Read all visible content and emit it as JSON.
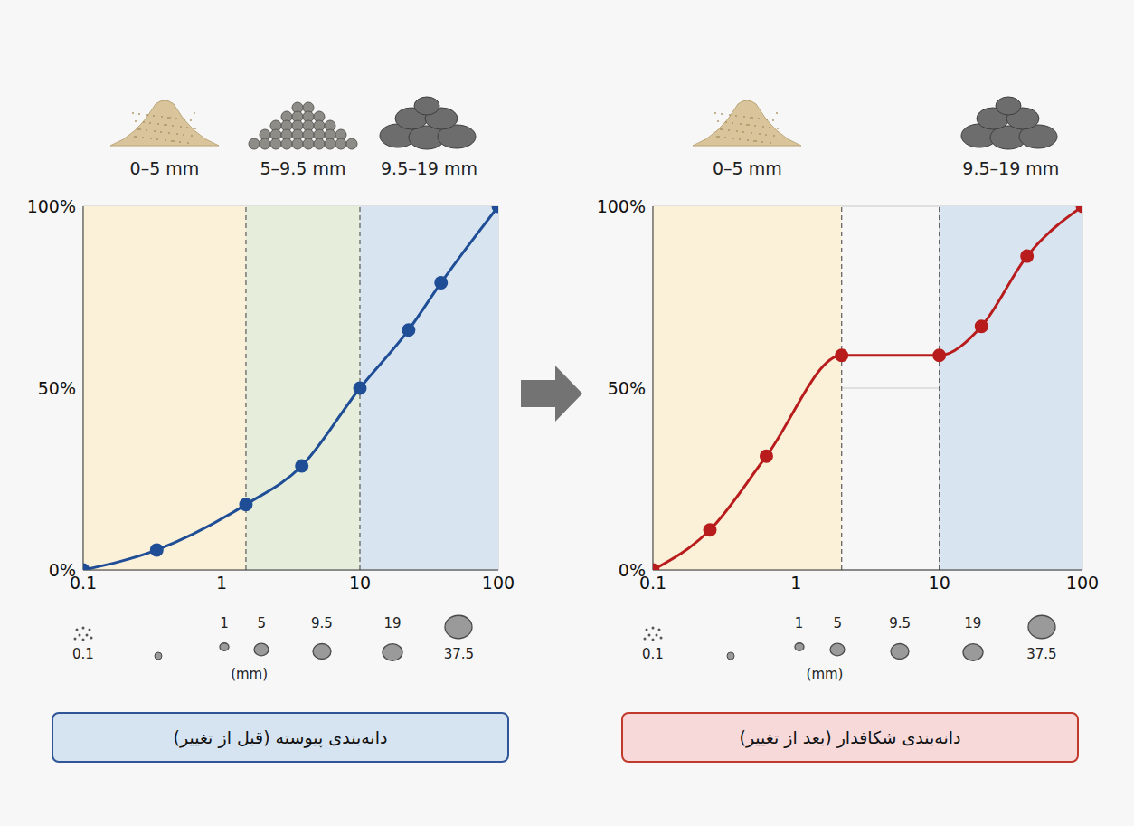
{
  "chart_data": [
    {
      "type": "line",
      "title": "دانه‌بندی پیوسته (قبل از تغییر)",
      "x": [
        0.1,
        0.34,
        1.5,
        3.8,
        10,
        22.5,
        38.6,
        100
      ],
      "values": [
        0,
        5.5,
        18,
        28.6,
        50,
        66,
        79,
        100
      ],
      "color": "#1f4e96",
      "marker": "circle",
      "log": "x",
      "grid": true,
      "xlim": [
        0.1,
        100
      ],
      "xticks": [
        0.1,
        1,
        10,
        100
      ],
      "ylim": [
        0,
        100
      ],
      "yticks": [
        {
          "value": 0,
          "label": "0%"
        },
        {
          "value": 50,
          "label": "50%"
        },
        {
          "value": 100,
          "label": "100%"
        }
      ],
      "x_label": "(mm)",
      "size_labels": [
        "0.1",
        "1",
        "5",
        "9.5",
        "19",
        "37.5"
      ],
      "bands": [
        {
          "label": "0–5 mm",
          "range": [
            0.1,
            1.5
          ],
          "color": "#fbf0d8"
        },
        {
          "label": "5–9.5 mm",
          "range": [
            1.5,
            10
          ],
          "color": "#e6eedb"
        },
        {
          "label": "9.5–19 mm",
          "range": [
            10,
            100
          ],
          "color": "#d8e4f0"
        }
      ]
    },
    {
      "type": "line",
      "title": "دانه‌بندی شکافدار (بعد از تغییر)",
      "x": [
        0.1,
        0.25,
        0.62,
        2.08,
        10,
        19.7,
        41,
        100
      ],
      "values": [
        0,
        11,
        31.3,
        59,
        59,
        67,
        86.3,
        100
      ],
      "color": "#b81c1c",
      "marker": "circle",
      "log": "x",
      "grid": true,
      "xlim": [
        0.1,
        100
      ],
      "xticks": [
        0.1,
        1,
        10,
        100
      ],
      "ylim": [
        0,
        100
      ],
      "yticks": [
        {
          "value": 0,
          "label": "0%"
        },
        {
          "value": 50,
          "label": "50%"
        },
        {
          "value": 100,
          "label": "100%"
        }
      ],
      "x_label": "(mm)",
      "size_labels": [
        "0.1",
        "1",
        "5",
        "9.5",
        "19",
        "37.5"
      ],
      "bands": [
        {
          "label": "0–5 mm",
          "range": [
            0.1,
            2.08
          ],
          "color": "#fbf0d8"
        },
        {
          "label": "9.5–19 mm",
          "range": [
            10,
            100
          ],
          "color": "#d8e4f0"
        }
      ]
    }
  ]
}
